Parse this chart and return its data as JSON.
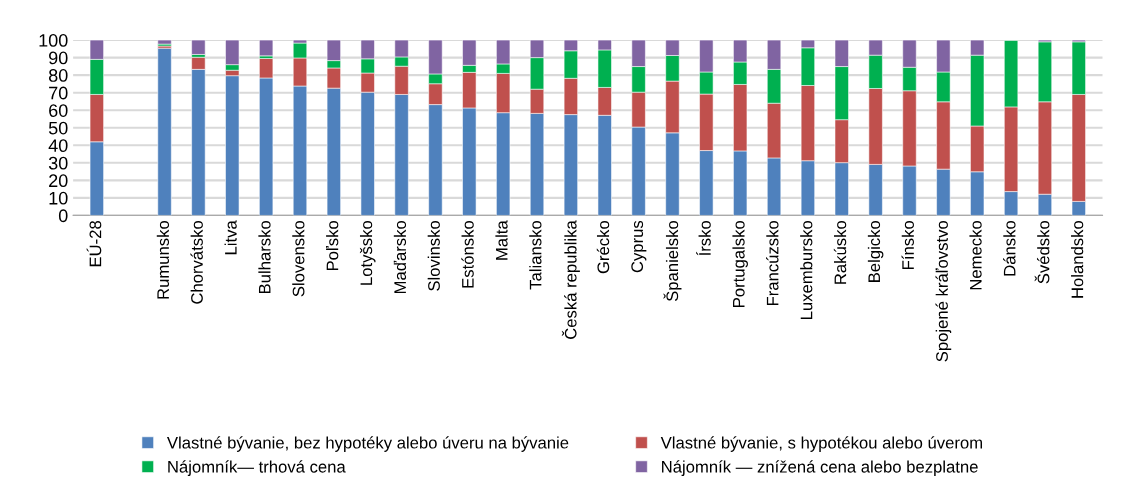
{
  "chart_data": {
    "type": "bar",
    "stacked": true,
    "categories": [
      "EÚ-28",
      null,
      "Rumunsko",
      "Chorvátsko",
      "Litva",
      "Bulharsko",
      "Slovensko",
      "Poľsko",
      "Lotyšsko",
      "Maďarsko",
      "Slovinsko",
      "Estónsko",
      "Malta",
      "Taliansko",
      "Česká republika",
      "Grécko",
      "Cyprus",
      "Španielsko",
      "Írsko",
      "Portugalsko",
      "Francúzsko",
      "Luxembursko",
      "Rakúsko",
      "Belgicko",
      "Fínsko",
      "Spojené kráľovstvo",
      "Nemecko",
      "Dánsko",
      "Švédsko",
      "Holandsko"
    ],
    "series": [
      {
        "name": "Vlastné bývanie, bez hypotéky alebo úveru na bývanie",
        "color": "#4f81bd",
        "values": [
          42,
          null,
          95.4,
          83.3,
          79.7,
          78.4,
          73.8,
          72.6,
          70.3,
          69.0,
          63.2,
          61.3,
          58.6,
          58.2,
          57.5,
          57.1,
          50.4,
          47.1,
          37.0,
          36.8,
          32.8,
          31.2,
          30.1,
          29.1,
          28.2,
          26.4,
          24.9,
          13.6,
          12.1,
          8.0
        ]
      },
      {
        "name": "Vlastné bývanie, s hypotékou alebo úverom",
        "color": "#c0504d",
        "values": [
          27,
          null,
          1.2,
          6.9,
          3.1,
          11.1,
          16.0,
          11.5,
          10.9,
          16.1,
          11.9,
          20.3,
          22.4,
          13.8,
          20.7,
          15.9,
          19.9,
          29.5,
          32.2,
          37.9,
          31.2,
          42.9,
          24.5,
          43.3,
          42.9,
          38.4,
          26.1,
          48.3,
          52.7,
          61.0
        ]
      },
      {
        "name": "Nájomník— trhová cena",
        "color": "#00b050",
        "values": [
          20,
          null,
          1.1,
          1.6,
          3.2,
          1.5,
          8.5,
          4.2,
          8.1,
          5.3,
          5.6,
          4.0,
          5.4,
          18.0,
          15.7,
          21.4,
          14.6,
          14.6,
          12.6,
          12.8,
          19.3,
          21.5,
          30.3,
          19.0,
          13.4,
          17.0,
          40.4,
          37.9,
          34.2,
          30.0
        ]
      },
      {
        "name": "Nájomník — znížená cena alebo bezplatne",
        "color": "#8064a2",
        "values": [
          11,
          null,
          2.3,
          8.2,
          14.0,
          9.0,
          1.7,
          11.7,
          10.7,
          9.6,
          19.3,
          14.4,
          13.6,
          10.0,
          6.1,
          5.6,
          15.1,
          8.8,
          18.2,
          12.5,
          16.7,
          4.4,
          15.1,
          8.6,
          15.5,
          18.2,
          8.6,
          null,
          1.0,
          1.0
        ]
      }
    ],
    "ylim": [
      0,
      100
    ],
    "yticks": [
      0,
      10,
      20,
      30,
      40,
      50,
      60,
      70,
      80,
      90,
      100
    ],
    "grid": "y",
    "legend": "bottom"
  }
}
